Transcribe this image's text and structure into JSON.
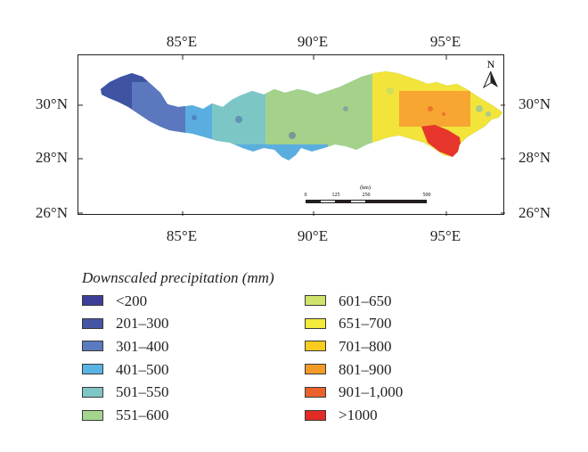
{
  "map": {
    "top_longitude_labels": [
      "85°E",
      "90°E",
      "95°E"
    ],
    "bottom_longitude_labels": [
      "85°E",
      "90°E",
      "95°E"
    ],
    "left_latitude_labels": [
      "30°N",
      "28°N",
      "26°N"
    ],
    "right_latitude_labels": [
      "30°N",
      "28°N",
      "26°N"
    ],
    "north_arrow_label": "N",
    "scale_bar": {
      "unit": "(km)",
      "ticks": [
        "0",
        "125",
        "250",
        "500"
      ]
    },
    "region_colors": {
      "outer_west": "#3f53a3",
      "west": "#5b77bd",
      "central": "#5aaedf",
      "central_east": "#7cc7c5",
      "mid": "#a5d28a",
      "east": "#f2e43a",
      "east_orange": "#f6a631",
      "east_red": "#e6362b"
    }
  },
  "legend": {
    "title": "Downscaled precipitation (mm)",
    "items": [
      {
        "label": "<200",
        "color": "#3d3f99"
      },
      {
        "label": "201–300",
        "color": "#4555a4"
      },
      {
        "label": "301–400",
        "color": "#5a7bbf"
      },
      {
        "label": "401–500",
        "color": "#59b3e3"
      },
      {
        "label": "501–550",
        "color": "#7fc7c6"
      },
      {
        "label": "551–600",
        "color": "#a4d58e"
      },
      {
        "label": "601–650",
        "color": "#cfe36b"
      },
      {
        "label": "651–700",
        "color": "#f3ea3b"
      },
      {
        "label": "701–800",
        "color": "#f9cc1e"
      },
      {
        "label": "801–900",
        "color": "#f39a29"
      },
      {
        "label": "901–1,000",
        "color": "#e9622b"
      },
      {
        "label": ">1000",
        "color": "#e22b25"
      }
    ]
  }
}
